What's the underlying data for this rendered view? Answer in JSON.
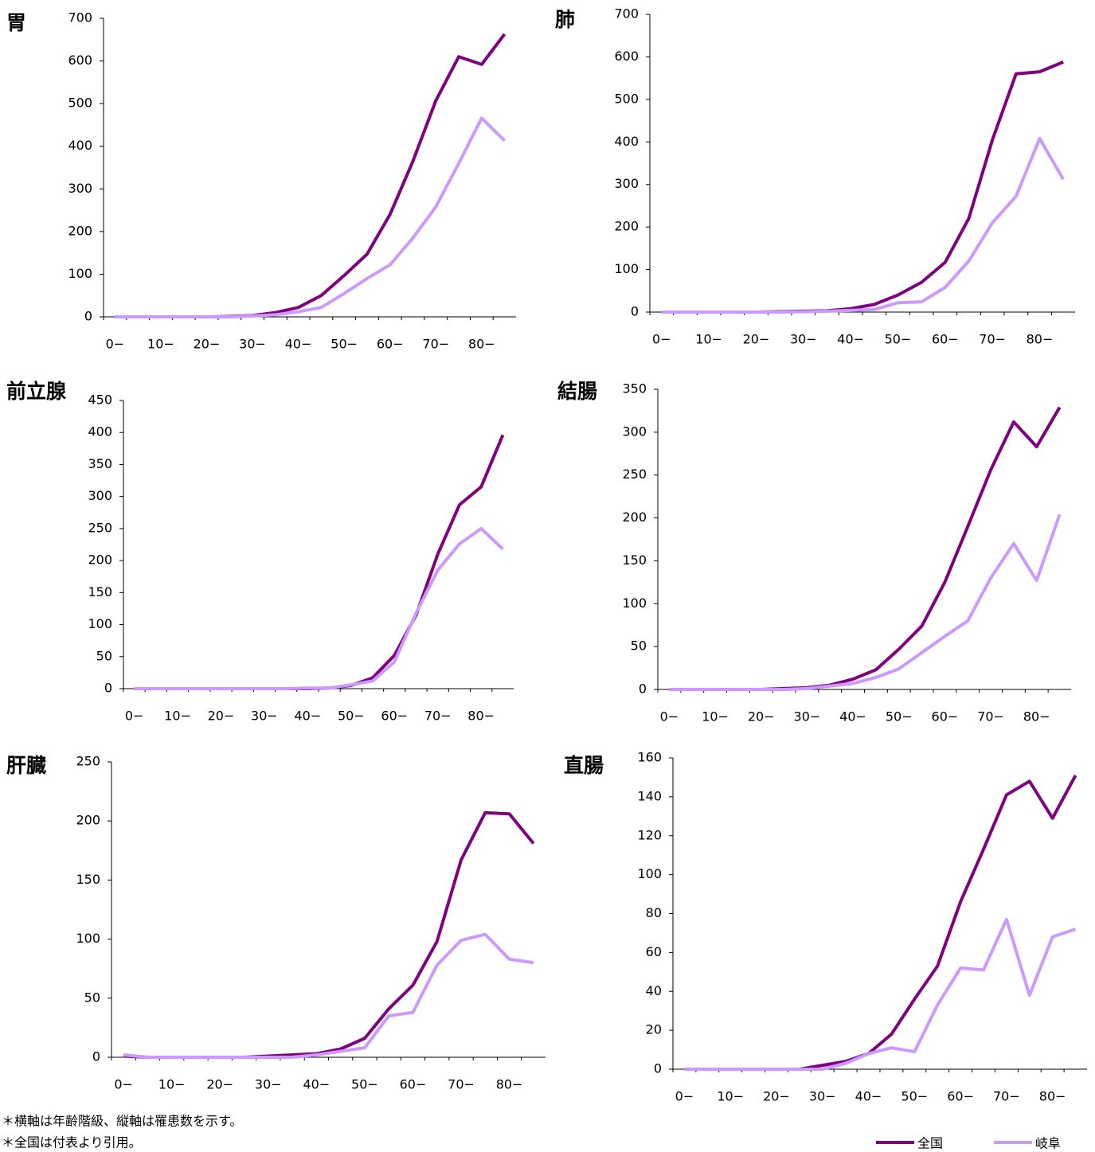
{
  "charts": [
    {
      "type": "line",
      "title": "胃",
      "categories": [
        "0−",
        null,
        "10−",
        null,
        "20−",
        null,
        "30−",
        null,
        "40−",
        null,
        "50−",
        null,
        "60−",
        null,
        "70−",
        null,
        "80−",
        null
      ],
      "ylim": [
        0,
        700
      ],
      "yticks": [
        0,
        100,
        200,
        300,
        400,
        500,
        600,
        700
      ],
      "series": [
        {
          "values": [
            0,
            0,
            0,
            0,
            0,
            1,
            3,
            10,
            22,
            50,
            97,
            147,
            240,
            365,
            507,
            610,
            592,
            663
          ]
        },
        {
          "values": [
            0,
            0,
            0,
            0,
            0,
            0,
            2,
            5,
            12,
            22,
            55,
            90,
            122,
            185,
            258,
            360,
            466,
            413
          ]
        }
      ]
    },
    {
      "type": "line",
      "title": "肺",
      "categories": [
        "0−",
        null,
        "10−",
        null,
        "20−",
        null,
        "30−",
        null,
        "40−",
        null,
        "50−",
        null,
        "60−",
        null,
        "70−",
        null,
        "80−",
        null
      ],
      "ylim": [
        0,
        700
      ],
      "yticks": [
        0,
        100,
        200,
        300,
        400,
        500,
        600,
        700
      ],
      "series": [
        {
          "values": [
            0,
            0,
            0,
            0,
            0,
            1,
            2,
            3,
            8,
            18,
            40,
            70,
            117,
            220,
            405,
            560,
            565,
            588
          ]
        },
        {
          "values": [
            0,
            0,
            0,
            0,
            0,
            0,
            1,
            2,
            4,
            6,
            22,
            24,
            58,
            120,
            210,
            272,
            408,
            312
          ]
        }
      ]
    },
    {
      "type": "line",
      "title": "前立腺",
      "categories": [
        "0−",
        null,
        "10−",
        null,
        "20−",
        null,
        "30−",
        null,
        "40−",
        null,
        "50−",
        null,
        "60−",
        null,
        "70−",
        null,
        "80−",
        null
      ],
      "ylim": [
        0,
        450
      ],
      "yticks": [
        0,
        50,
        100,
        150,
        200,
        250,
        300,
        350,
        400,
        450
      ],
      "series": [
        {
          "values": [
            0,
            0,
            0,
            0,
            0,
            0,
            0,
            0,
            0,
            1,
            5,
            17,
            52,
            115,
            210,
            287,
            315,
            396
          ]
        },
        {
          "values": [
            0,
            0,
            0,
            0,
            0,
            0,
            0,
            0,
            1,
            1,
            6,
            12,
            42,
            118,
            185,
            226,
            250,
            218
          ]
        }
      ]
    },
    {
      "type": "line",
      "title": "結腸",
      "categories": [
        "0−",
        null,
        "10−",
        null,
        "20−",
        null,
        "30−",
        null,
        "40−",
        null,
        "50−",
        null,
        "60−",
        null,
        "70−",
        null,
        "80−",
        null
      ],
      "ylim": [
        0,
        350
      ],
      "yticks": [
        0,
        50,
        100,
        150,
        200,
        250,
        300,
        350
      ],
      "series": [
        {
          "values": [
            0,
            0,
            0,
            0,
            0,
            1,
            2,
            5,
            12,
            23,
            47,
            74,
            125,
            190,
            256,
            312,
            283,
            329
          ]
        },
        {
          "values": [
            0,
            0,
            0,
            0,
            0,
            0,
            1,
            4,
            7,
            14,
            24,
            43,
            62,
            80,
            130,
            170,
            127,
            204
          ]
        }
      ]
    },
    {
      "type": "line",
      "title": "肝臓",
      "categories": [
        "0−",
        null,
        "10−",
        null,
        "20−",
        null,
        "30−",
        null,
        "40−",
        null,
        "50−",
        null,
        "60−",
        null,
        "70−",
        null,
        "80−",
        null
      ],
      "ylim": [
        0,
        250
      ],
      "yticks": [
        0,
        50,
        100,
        150,
        200,
        250
      ],
      "series": [
        {
          "values": [
            1,
            0,
            0,
            0,
            0,
            0,
            1,
            2,
            3,
            7,
            16,
            41,
            61,
            98,
            167,
            207,
            206,
            181
          ]
        },
        {
          "values": [
            2,
            0,
            0,
            0,
            0,
            0,
            0,
            0,
            2,
            5,
            8,
            35,
            38,
            78,
            99,
            104,
            83,
            80
          ]
        }
      ]
    },
    {
      "type": "line",
      "title": "直腸",
      "categories": [
        "0−",
        null,
        "10−",
        null,
        "20−",
        null,
        "30−",
        null,
        "40−",
        null,
        "50−",
        null,
        "60−",
        null,
        "70−",
        null,
        "80−",
        null
      ],
      "ylim": [
        0,
        160
      ],
      "yticks": [
        0,
        20,
        40,
        60,
        80,
        100,
        120,
        140,
        160
      ],
      "series": [
        {
          "values": [
            0,
            0,
            0,
            0,
            0,
            0,
            2,
            4,
            8,
            18,
            36,
            53,
            86,
            113,
            141,
            148,
            129,
            151
          ]
        },
        {
          "values": [
            0,
            0,
            0,
            0,
            0,
            0,
            0,
            3,
            8,
            11,
            9,
            33,
            52,
            51,
            77,
            38,
            68,
            72
          ]
        }
      ]
    }
  ],
  "legend": [
    {
      "name": "全国",
      "color": "#800080"
    },
    {
      "name": "岐阜",
      "color": "#cc99ff"
    }
  ],
  "notes": [
    "＊横軸は年齢階級、縦軸は罹患数を示す。",
    "＊全国は付表より引用。"
  ]
}
